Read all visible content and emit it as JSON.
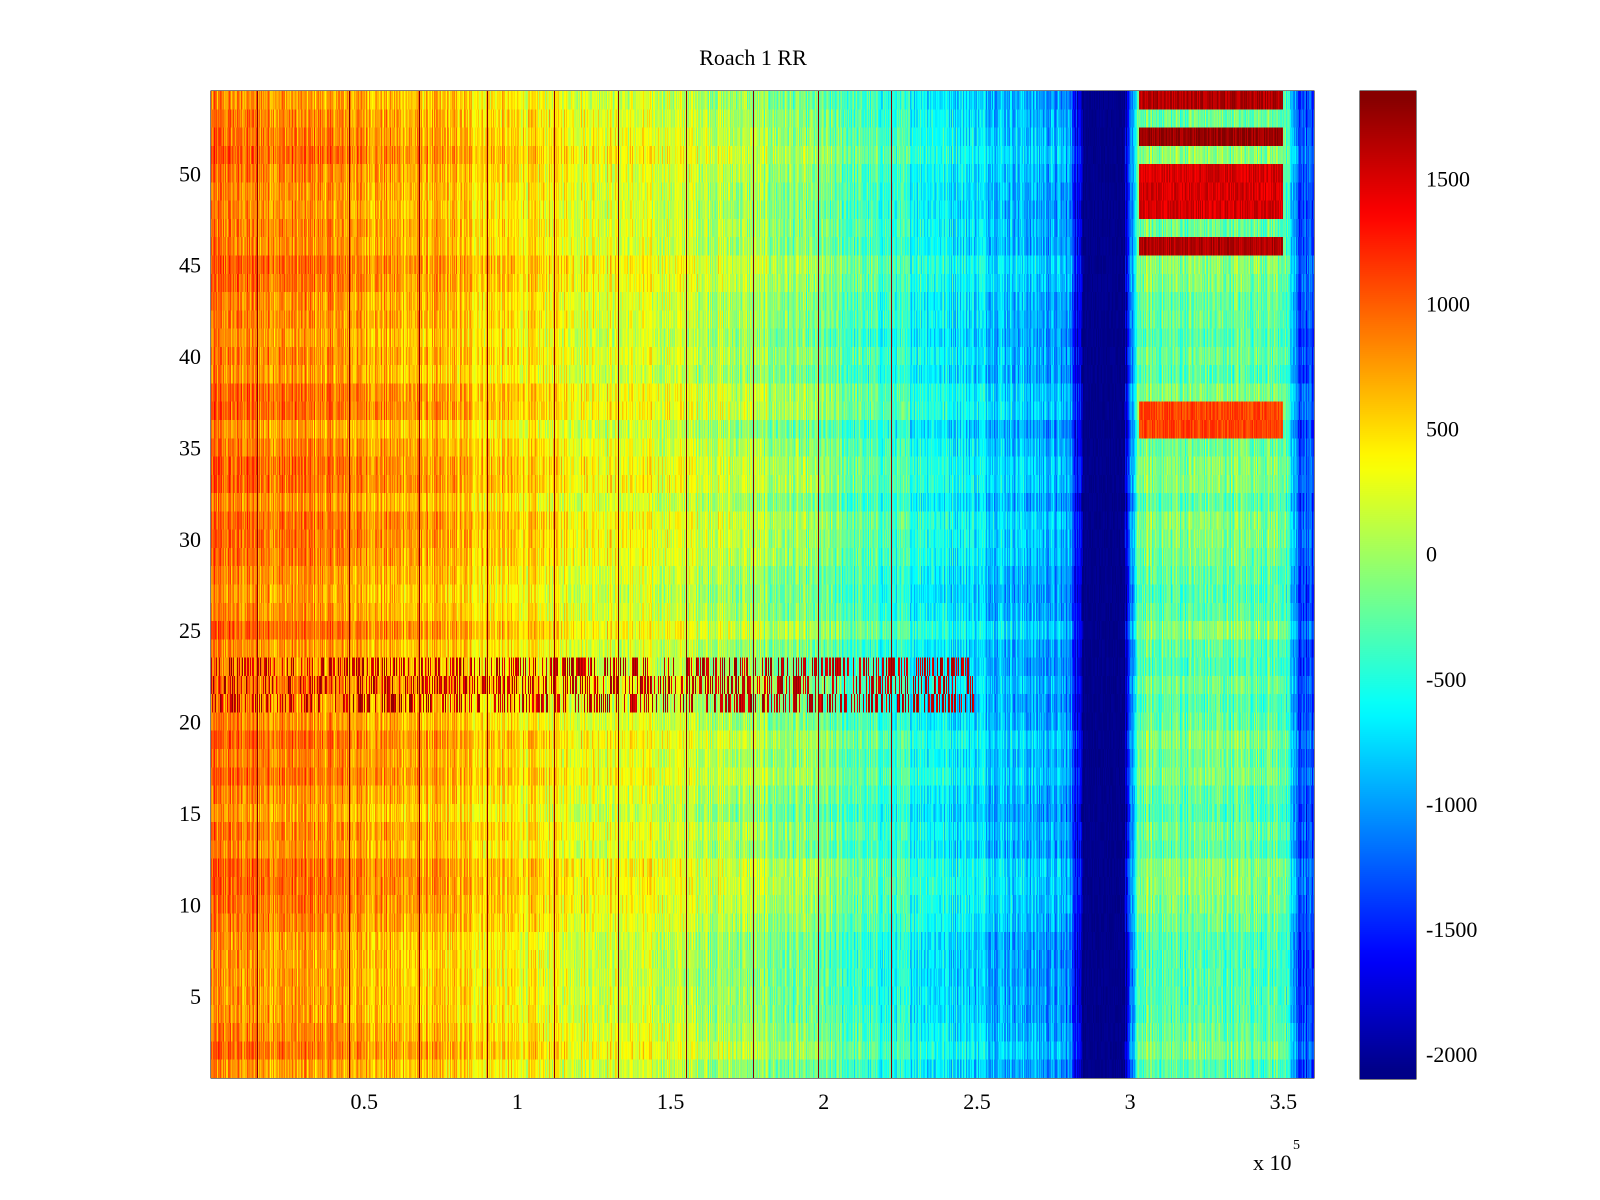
{
  "chart_data": {
    "type": "heatmap",
    "title": "Roach 1 RR",
    "xlabel": "",
    "ylabel": "",
    "colormap": "jet",
    "x_range": [
      0,
      360000
    ],
    "y_range": [
      0.5,
      54.5
    ],
    "rows": 54,
    "x_tick_values": [
      0.5,
      1,
      1.5,
      2,
      2.5,
      3,
      3.5
    ],
    "x_tick_labels": [
      "0.5",
      "1",
      "1.5",
      "2",
      "2.5",
      "3",
      "3.5"
    ],
    "x_scale_label": "x 10",
    "x_scale_exponent": "5",
    "y_tick_values": [
      5,
      10,
      15,
      20,
      25,
      30,
      35,
      40,
      45,
      50
    ],
    "y_tick_labels": [
      "5",
      "10",
      "15",
      "20",
      "25",
      "30",
      "35",
      "40",
      "45",
      "50"
    ],
    "colorbar": {
      "range": [
        -2100,
        1850
      ],
      "tick_values": [
        1500,
        1000,
        500,
        0,
        -500,
        -1000,
        -1500,
        -2000
      ],
      "tick_labels": [
        "1500",
        "1000",
        "500",
        "0",
        "-500",
        "-1000",
        "-1500",
        "-2000"
      ]
    },
    "column_profile": {
      "x": [
        0,
        20000,
        40000,
        60000,
        80000,
        100000,
        130000,
        160000,
        190000,
        220000,
        250000,
        280000,
        285000,
        298000,
        303000,
        350000,
        355000,
        360000
      ],
      "value": [
        900,
        850,
        800,
        700,
        600,
        450,
        300,
        150,
        -100,
        -400,
        -700,
        -1000,
        -2050,
        -2050,
        -200,
        -200,
        -1300,
        -1300
      ]
    },
    "row_bands": [
      {
        "rows": [
          21,
          23
        ],
        "pattern": "hot-streaks",
        "x_range": [
          0,
          250000
        ]
      },
      {
        "rows": [
          36,
          37
        ],
        "value": 1100,
        "x_range": [
          303000,
          350000
        ]
      },
      {
        "rows": [
          46,
          46
        ],
        "value": 1650,
        "x_range": [
          303000,
          350000
        ]
      },
      {
        "rows": [
          48,
          50
        ],
        "value": 1500,
        "x_range": [
          303000,
          350000
        ]
      },
      {
        "rows": [
          52,
          52
        ],
        "value": 1750,
        "x_range": [
          303000,
          350000
        ]
      },
      {
        "rows": [
          54,
          54
        ],
        "value": 1650,
        "x_range": [
          303000,
          350000
        ]
      }
    ],
    "dark_vertical_lines_x": [
      15000,
      45000,
      68000,
      90000,
      112000,
      133000,
      155000,
      177000,
      198000,
      222000
    ],
    "dark_vertical_lines_value": 1800
  }
}
